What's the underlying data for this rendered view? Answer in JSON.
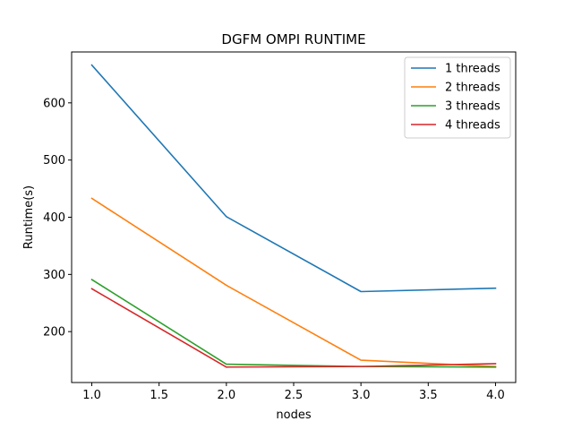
{
  "chart_data": {
    "type": "line",
    "title": "DGFM OMPI RUNTIME",
    "xlabel": "nodes",
    "ylabel": "Runtime(s)",
    "xlim": [
      0.85,
      4.15
    ],
    "ylim": [
      111,
      689
    ],
    "xticks": [
      "1.0",
      "1.5",
      "2.0",
      "2.5",
      "3.0",
      "3.5",
      "4.0"
    ],
    "yticks": [
      "200",
      "300",
      "400",
      "500",
      "600"
    ],
    "grid": false,
    "legend_position": "top-right",
    "x": [
      1,
      2,
      3,
      4
    ],
    "series": [
      {
        "name": "1 threads",
        "color": "#1f77b4",
        "values": [
          666,
          401,
          270,
          276
        ]
      },
      {
        "name": "2 threads",
        "color": "#ff7f0e",
        "values": [
          433,
          281,
          150,
          139
        ]
      },
      {
        "name": "3 threads",
        "color": "#2ca02c",
        "values": [
          291,
          143,
          139,
          138
        ]
      },
      {
        "name": "4 threads",
        "color": "#d62728",
        "values": [
          275,
          138,
          139,
          144
        ]
      }
    ]
  }
}
